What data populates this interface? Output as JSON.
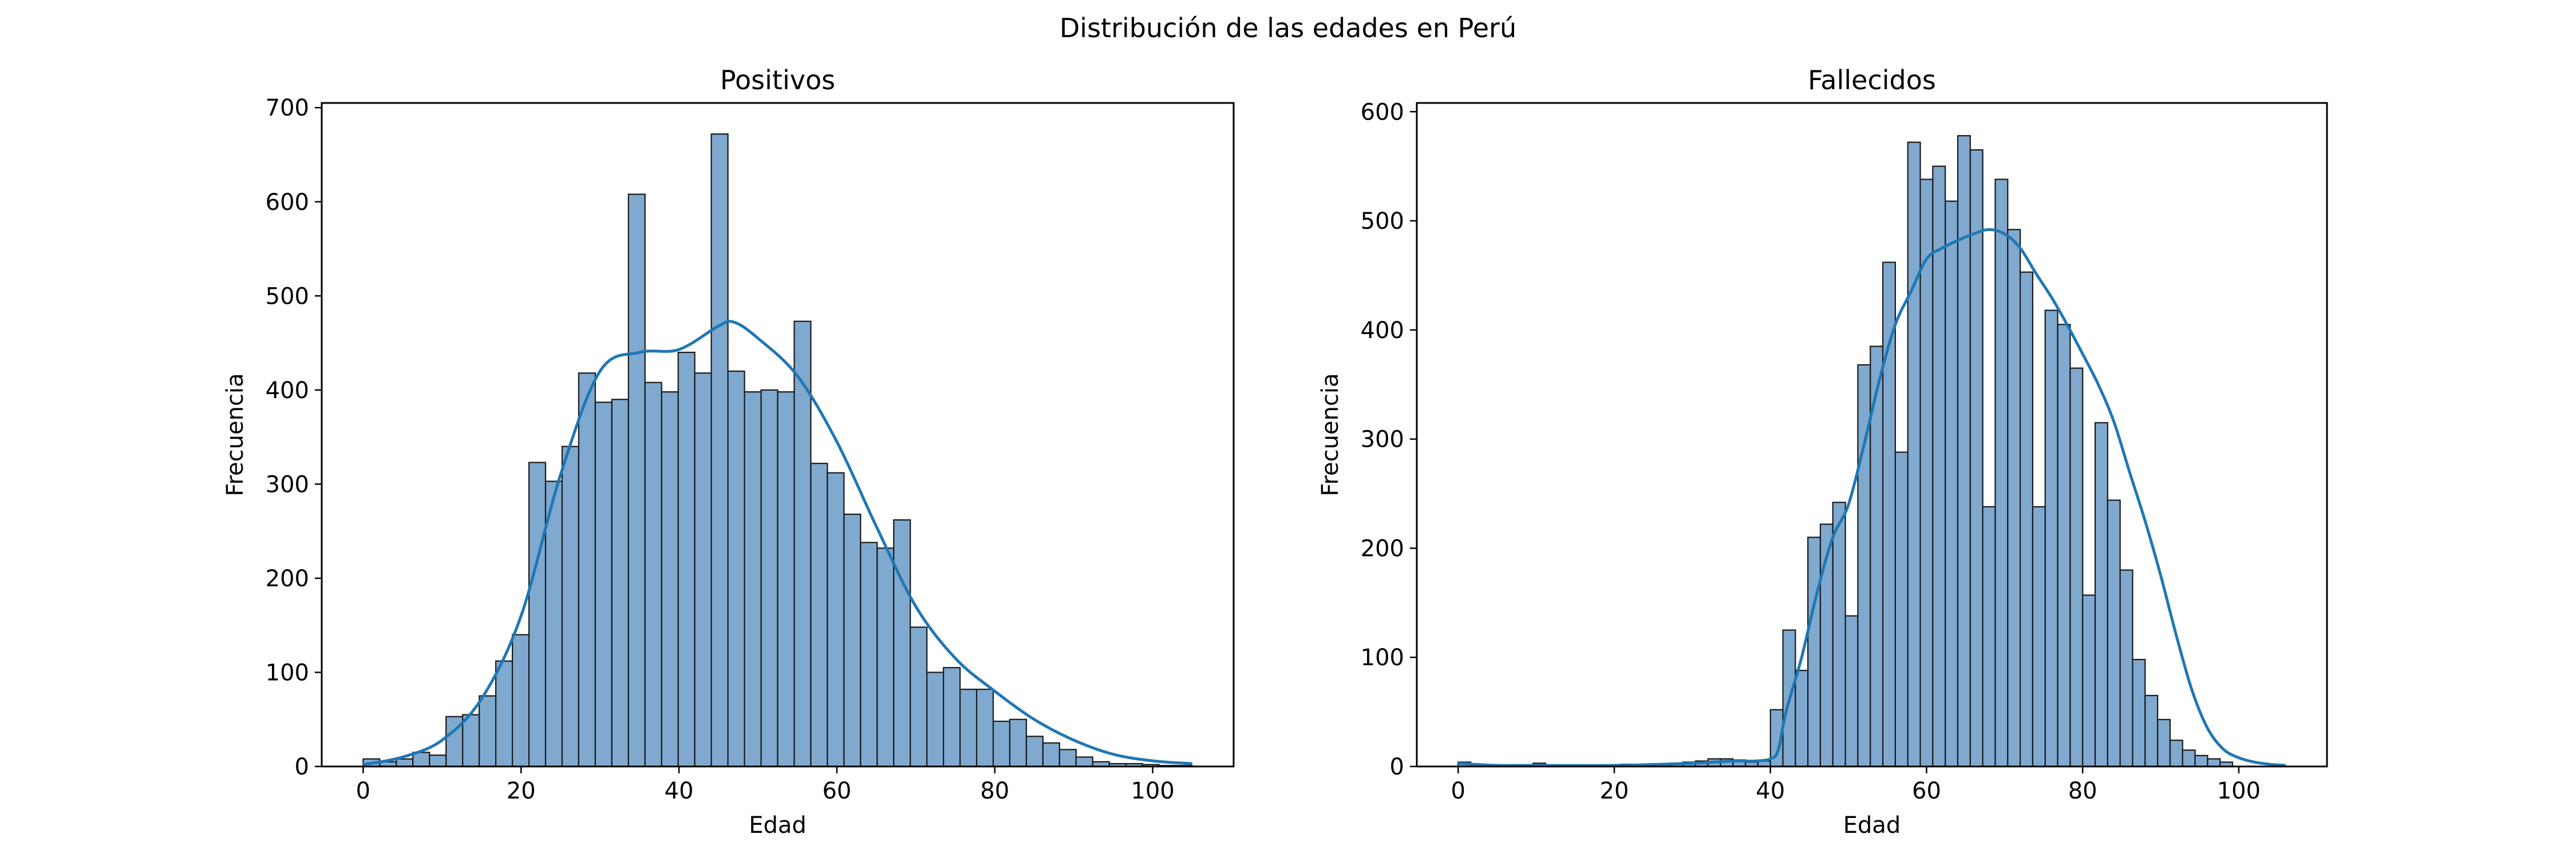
{
  "suptitle": "Distribución de las edades en Perú",
  "colors": {
    "bar_fill": "#7fa9cf",
    "bar_edge": "#1a1a1a",
    "kde_line": "#1f77b4",
    "axes": "#000000"
  },
  "chart_data": [
    {
      "type": "bar",
      "title": "Positivos",
      "xlabel": "Edad",
      "ylabel": "Frecuencia",
      "xlim": [
        -5.25,
        110.25
      ],
      "ylim": [
        0,
        705
      ],
      "xticks": [
        0,
        20,
        40,
        60,
        80,
        100
      ],
      "yticks": [
        0,
        100,
        200,
        300,
        400,
        500,
        600,
        700
      ],
      "bin_start": 0,
      "bin_width": 2.1,
      "values": [
        8,
        5,
        8,
        15,
        12,
        53,
        55,
        75,
        112,
        140,
        323,
        303,
        340,
        418,
        387,
        390,
        608,
        408,
        398,
        440,
        418,
        672,
        420,
        398,
        400,
        398,
        473,
        322,
        312,
        268,
        238,
        232,
        262,
        148,
        100,
        105,
        82,
        82,
        48,
        50,
        32,
        25,
        18,
        10,
        5,
        3,
        3,
        2,
        1,
        1
      ],
      "kde": {
        "x": [
          0,
          5,
          10,
          15,
          20,
          25,
          30,
          35,
          40,
          45,
          47,
          50,
          55,
          60,
          65,
          70,
          75,
          80,
          85,
          90,
          95,
          100,
          105
        ],
        "y": [
          2,
          10,
          28,
          72,
          160,
          310,
          420,
          440,
          443,
          468,
          472,
          455,
          415,
          345,
          255,
          170,
          115,
          80,
          50,
          28,
          13,
          6,
          3
        ]
      },
      "grid": false
    },
    {
      "type": "bar",
      "title": "Fallecidos",
      "xlabel": "Edad",
      "ylabel": "Frecuencia",
      "xlim": [
        -5.3,
        111.3
      ],
      "ylim": [
        0,
        608
      ],
      "xticks": [
        0,
        20,
        40,
        60,
        80,
        100
      ],
      "yticks": [
        0,
        100,
        200,
        300,
        400,
        500,
        600
      ],
      "bin_start": 0,
      "bin_width": 1.6,
      "values": [
        4,
        1,
        1,
        1,
        1,
        1,
        3,
        1,
        1,
        1,
        1,
        1,
        1,
        2,
        2,
        2,
        2,
        3,
        4,
        5,
        7,
        7,
        6,
        4,
        5,
        52,
        125,
        88,
        210,
        222,
        242,
        138,
        368,
        385,
        462,
        288,
        572,
        538,
        550,
        518,
        578,
        565,
        238,
        538,
        492,
        453,
        238,
        418,
        405,
        365,
        157,
        315,
        244,
        180,
        98,
        65,
        43,
        24,
        15,
        10,
        7,
        4
      ],
      "kde": {
        "x": [
          0,
          2,
          5,
          10,
          20,
          30,
          35,
          38,
          40,
          41,
          42,
          44,
          46,
          48,
          50,
          52,
          54,
          56,
          58,
          60,
          62,
          64,
          66,
          68,
          70,
          72,
          74,
          76,
          78,
          80,
          82,
          84,
          86,
          88,
          90,
          92,
          94,
          96,
          98,
          100,
          102,
          104,
          106
        ],
        "y": [
          3,
          2,
          1,
          1,
          1,
          3,
          5,
          5,
          7,
          15,
          50,
          100,
          160,
          210,
          240,
          295,
          355,
          405,
          435,
          465,
          475,
          482,
          488,
          492,
          488,
          475,
          452,
          430,
          405,
          378,
          350,
          316,
          270,
          225,
          175,
          120,
          70,
          35,
          16,
          8,
          4,
          2,
          1
        ]
      },
      "grid": false
    }
  ]
}
